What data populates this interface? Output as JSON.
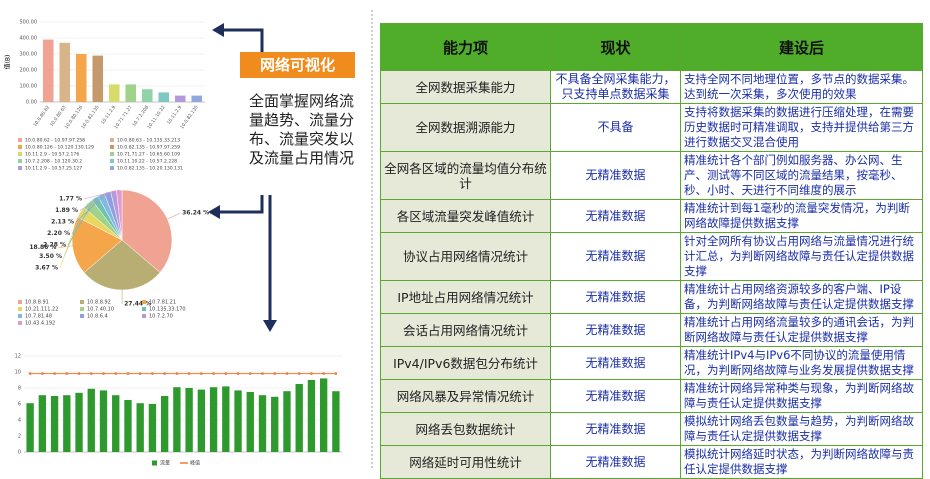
{
  "callout": {
    "title": "网络可视化",
    "text": "全面掌握网络流量趋势、流量分布、流量突发以及流量占用情况"
  },
  "table": {
    "header": [
      "能力项",
      "现状",
      "建设后"
    ],
    "rows": [
      [
        "全网数据采集能力",
        "不具备全网采集能力，只支持单点数据采集",
        "支持全网不同地理位置，多节点的数据采集。达到统一次采集，多次使用的效果"
      ],
      [
        "全网数据溯源能力",
        "不具备",
        "支持将数据采集的数据进行压缩处理，在需要历史数据时可精准调取，支持并提供给第三方进行数据交叉混合使用"
      ],
      [
        "全网各区域的流量均值分布统计",
        "无精准数据",
        "精准统计各个部门例如服务器、办公网、生产、测试等不同区域的流量结果，按毫秒、秒、小时、天进行不同维度的展示"
      ],
      [
        "各区域流量突发峰值统计",
        "无精准数据",
        "精准统计到每1毫秒的流量突发情况，为判断网络故障提供数据支撑"
      ],
      [
        "协议占用网络情况统计",
        "无精准数据",
        "针对全网所有协议占用网络与流量情况进行统计汇总，为判断网络故障与责任认定提供数据支撑"
      ],
      [
        "IP地址占用网络情况统计",
        "无精准数据",
        "精准统计占用网络资源较多的客户端、IP设备，为判断网络故障与责任认定提供数据支撑"
      ],
      [
        "会话占用网络情况统计",
        "无精准数据",
        "精准统计占用网络流量较多的通讯会话，为判断网络故障与责任认定提供数据支撑"
      ],
      [
        "IPv4/IPv6数据包分布统计",
        "无精准数据",
        "精准统计IPv4与IPv6不同协议的流量使用情况，为判断网络故障与业务发展提供数据支撑"
      ],
      [
        "网络风暴及异常情况统计",
        "无精准数据",
        "精准统计网络异常种类与现象，为判断网络故障与责任认定提供数据支撑"
      ],
      [
        "网络丢包数据统计",
        "无精准数据",
        "模拟统计网络丢包数量与趋势，为判断网络故障与责任认定提供数据支撑"
      ],
      [
        "网络延时可用性统计",
        "无精准数据",
        "模拟统计网络延时状态，为判断网络故障与责任认定提供数据支撑"
      ]
    ]
  },
  "chart_data": [
    {
      "type": "bar",
      "y_label": "值(B)",
      "categories": [
        "10.0.80.62",
        "10.0.80.63",
        "10.0.80.126",
        "10.0.82.135",
        "10.11.2.9",
        "10.71.71.27",
        "10.7.2.208",
        "10.11.10.22",
        "10.11.2.9",
        "10.0.82.135"
      ],
      "values": [
        390,
        370,
        300,
        290,
        110,
        110,
        80,
        60,
        40,
        40
      ],
      "colors": [
        "#f0a293",
        "#d8b48a",
        "#f5a54a",
        "#c49a6c",
        "#d6dc6a",
        "#9fd38a",
        "#8fd4a8",
        "#7fc9c4",
        "#b49ad8",
        "#8fa8e0"
      ],
      "legend": [
        "10.0.80.62 - 10.97.97.258",
        "10.0.80.63 - 10.135.33.213",
        "10.0.80.126 - 10.120.130.129",
        "10.0.82.135 - 10.97.97.259",
        "10.11.2.9 - 10.57.2.176",
        "10.71.71.27 - 10.65.60.109",
        "10.7.2.208 - 10.120.30.2",
        "10.11.10.22 - 10.57.2.228",
        "10.11.2.9 - 10.57.25.127",
        "10.0.82.135 - 10.20.130.131"
      ],
      "ylim": [
        0,
        500
      ],
      "yticks": [
        {
          "value": 0,
          "label": "0.00"
        },
        {
          "value": 100,
          "label": "100.00"
        },
        {
          "value": 200,
          "label": "200.00"
        },
        {
          "value": 300,
          "label": "300.00"
        },
        {
          "value": 400,
          "label": "400.00"
        },
        {
          "value": 500,
          "label": "500.00"
        }
      ],
      "grid": true
    },
    {
      "type": "pie",
      "categories": [
        "10.8.8.91",
        "10.8.8.92",
        "10.7.81.21",
        "10.21.111.22",
        "10.7.40.10",
        "10.135.33.170",
        "10.7.81.48",
        "10.8.6.4",
        "10.7.2.70",
        "10.43.4.192"
      ],
      "values": [
        36.24,
        27.44,
        18.86,
        3.67,
        3.5,
        2.28,
        2.2,
        2.13,
        1.89,
        1.77
      ],
      "value_labels": [
        "36.24 %",
        "27.44 %",
        "18.86 %",
        "3.67 %",
        "3.50 %",
        "2.28 %",
        "2.20 %",
        "2.13 %",
        "1.89 %",
        "1.77 %"
      ],
      "colors": [
        "#f0a293",
        "#b8ad72",
        "#f5a54a",
        "#e8d860",
        "#9fd38a",
        "#6fc2b0",
        "#7fb8e0",
        "#8f9ee0",
        "#b49ad8",
        "#e09ad0"
      ]
    },
    {
      "type": "bar",
      "series": [
        {
          "name": "流量",
          "type": "bar",
          "color": "#2e9a2e",
          "values": [
            6.1,
            7.1,
            7.0,
            7.1,
            7.4,
            7.9,
            7.7,
            7.1,
            6.5,
            6.1,
            6.0,
            7.0,
            8.1,
            8.0,
            7.8,
            8.1,
            8.2,
            7.7,
            7.5,
            7.1,
            6.9,
            7.6,
            8.5,
            9.0,
            9.2,
            7.6
          ]
        },
        {
          "name": "峰值",
          "type": "line",
          "color": "#f07a3a",
          "values": [
            9.8,
            9.8,
            9.8,
            9.8,
            9.8,
            9.8,
            9.8,
            9.8,
            9.8,
            9.8,
            9.8,
            9.8,
            9.8,
            9.8,
            9.8,
            9.8,
            9.8,
            9.8,
            9.8,
            9.8,
            9.8,
            9.8,
            9.8,
            9.8,
            9.8,
            9.8
          ]
        }
      ],
      "ylim": [
        0,
        12
      ],
      "yticks": [
        0,
        2,
        4,
        6,
        8,
        10,
        12
      ],
      "grid": true
    }
  ]
}
